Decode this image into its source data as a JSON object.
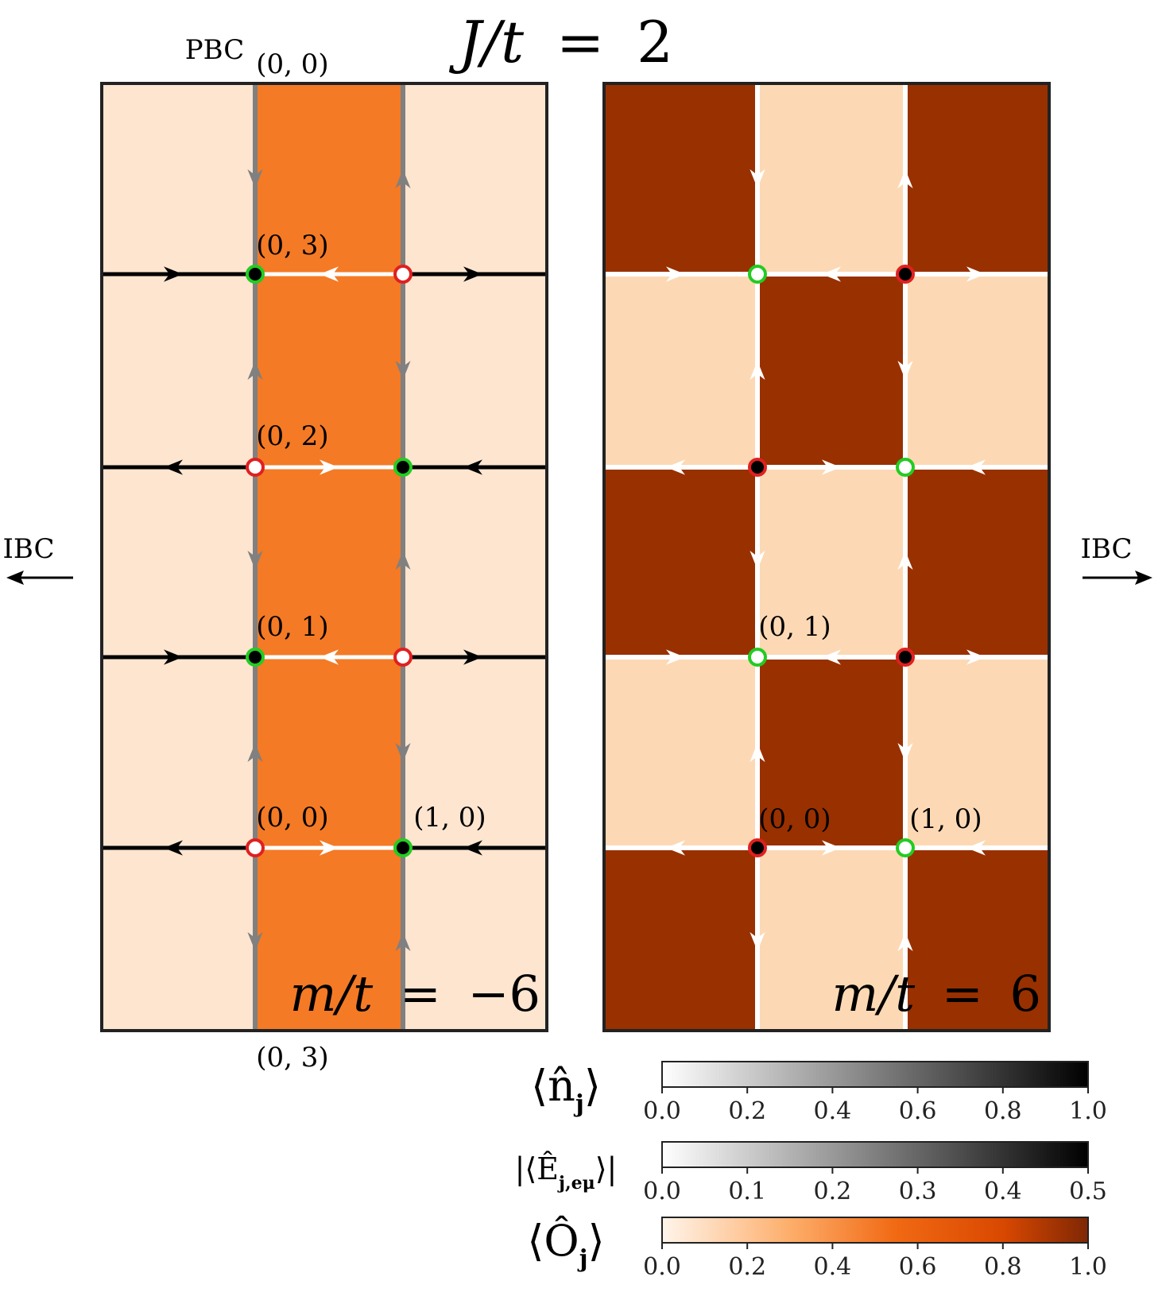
{
  "title": {
    "lhs": "J/t",
    "eq": "=",
    "rhs": "2"
  },
  "labels": {
    "pbc": "PBC",
    "ibc_left": "IBC",
    "ibc_right": "IBC",
    "top_coord": "(0, 0)",
    "bottom_coord": "(0, 3)"
  },
  "panels": [
    {
      "id": "left",
      "mass_label": {
        "lhs": "m/t",
        "eq": "=",
        "rhs": "−6"
      },
      "cell_colors": [
        "#fde5d0",
        "#f47a25",
        "#fde5d0"
      ],
      "cell_pattern": "columns",
      "vertical_link_color": "#808080",
      "site_labels": [
        "(0, 3)",
        "(0, 2)",
        "(0, 1)",
        "(0, 0)",
        "(1, 0)"
      ]
    },
    {
      "id": "right",
      "mass_label": {
        "lhs": "m/t",
        "eq": "=",
        "rhs": "6"
      },
      "cell_colors": [
        "#993000",
        "#fcd9b4"
      ],
      "cell_pattern": "checkerboard",
      "vertical_link_color": "#ffffff",
      "site_labels": [
        "(0, 1)",
        "(0, 0)",
        "(1, 0)"
      ]
    }
  ],
  "colorbars": [
    {
      "name": "n",
      "label": "⟨n̂_j⟩",
      "symbol": "⟨n̂",
      "sub": "j",
      "close": "⟩",
      "ticks": [
        "0.0",
        "0.2",
        "0.4",
        "0.6",
        "0.8",
        "1.0"
      ],
      "colors": [
        "#ffffff",
        "#000000"
      ]
    },
    {
      "name": "E",
      "label": "|⟨Ê_j,eμ⟩|",
      "symbol": "|⟨Ê",
      "sub": "j,eμ",
      "close": "⟩|",
      "ticks": [
        "0.0",
        "0.1",
        "0.2",
        "0.3",
        "0.4",
        "0.5"
      ],
      "colors": [
        "#ffffff",
        "#000000"
      ]
    },
    {
      "name": "O",
      "label": "⟨Ô_j⟩",
      "symbol": "⟨Ô",
      "sub": "j",
      "close": "⟩",
      "ticks": [
        "0.0",
        "0.2",
        "0.4",
        "0.6",
        "0.8",
        "1.0"
      ],
      "colors": [
        "#fff5eb",
        "#fdae6b",
        "#f16913",
        "#d94801",
        "#7f2704"
      ]
    }
  ],
  "colors": {
    "occupied_site": "#000000",
    "site_ring_green": "#22cc22",
    "site_ring_red": "#e02020",
    "empty_site": "#ffffff",
    "horizontal_link": "#000000",
    "inner_link": "#ffffff"
  }
}
